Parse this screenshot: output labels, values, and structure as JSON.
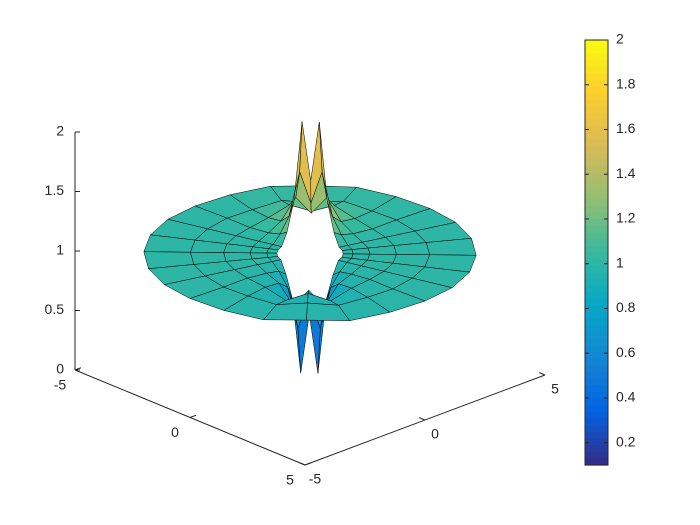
{
  "chart_data": {
    "type": "surface",
    "radius": [
      1,
      1.3,
      1.8,
      2.6,
      3.6,
      5
    ],
    "theta": [
      0,
      15,
      30,
      45,
      60,
      75,
      90,
      105,
      120,
      135,
      150,
      165,
      180,
      195,
      210,
      225,
      240,
      255,
      270,
      285,
      300,
      315,
      330,
      345
    ],
    "z": [
      [
        0.9,
        1,
        1,
        1,
        1,
        1,
        1.1,
        1.35,
        2,
        1.5,
        2,
        1.35,
        1.1,
        1,
        1,
        1,
        1,
        1,
        0.9,
        0.7,
        0.1,
        0.6,
        0.1,
        0.7
      ],
      [
        0.95,
        1,
        1,
        1,
        1,
        1,
        1.06,
        1.19,
        1.55,
        1.28,
        1.55,
        1.19,
        1.06,
        1,
        1,
        1,
        1,
        1,
        0.95,
        0.84,
        0.51,
        0.78,
        0.51,
        0.84
      ],
      [
        0.97,
        1,
        1,
        1,
        1,
        1,
        1.03,
        1.1,
        1.28,
        1.14,
        1.28,
        1.1,
        1.03,
        1,
        1,
        1,
        1,
        1,
        0.97,
        0.92,
        0.75,
        0.89,
        0.75,
        0.92
      ],
      [
        0.99,
        1,
        1,
        1,
        1,
        1,
        1.01,
        1.05,
        1.13,
        1.07,
        1.13,
        1.05,
        1.01,
        1,
        1,
        1,
        1,
        1,
        0.99,
        0.96,
        0.88,
        0.95,
        0.88,
        0.96
      ],
      [
        0.99,
        1,
        1,
        1,
        1,
        1,
        1.01,
        1.02,
        1.06,
        1.03,
        1.06,
        1.02,
        1.01,
        1,
        1,
        1,
        1,
        1,
        0.99,
        0.98,
        0.95,
        0.98,
        0.95,
        0.98
      ],
      [
        1,
        1,
        1,
        1,
        1,
        1,
        1,
        1.01,
        1.03,
        1.02,
        1.03,
        1.01,
        1,
        1,
        1,
        1,
        1,
        1,
        1,
        0.99,
        0.97,
        0.99,
        0.97,
        0.99
      ]
    ],
    "xlim": [
      -5,
      5
    ],
    "ylim": [
      -5,
      5
    ],
    "zlim": [
      0,
      2
    ],
    "xticks": [
      -5,
      0,
      5
    ],
    "yticks": [
      -5,
      0,
      5
    ],
    "zticks": [
      0,
      0.5,
      1,
      1.5,
      2
    ],
    "clim": [
      0.1,
      2
    ],
    "colorbar_ticks": [
      0.2,
      0.4,
      0.6,
      0.8,
      1,
      1.2,
      1.4,
      1.6,
      1.8,
      2
    ],
    "colormap": [
      "#352a87",
      "#0363e1",
      "#1485d4",
      "#06a7c6",
      "#38b99e",
      "#92bf73",
      "#d9ba56",
      "#fcce2e",
      "#f9fb0e"
    ],
    "edgecolor": "#000000"
  }
}
